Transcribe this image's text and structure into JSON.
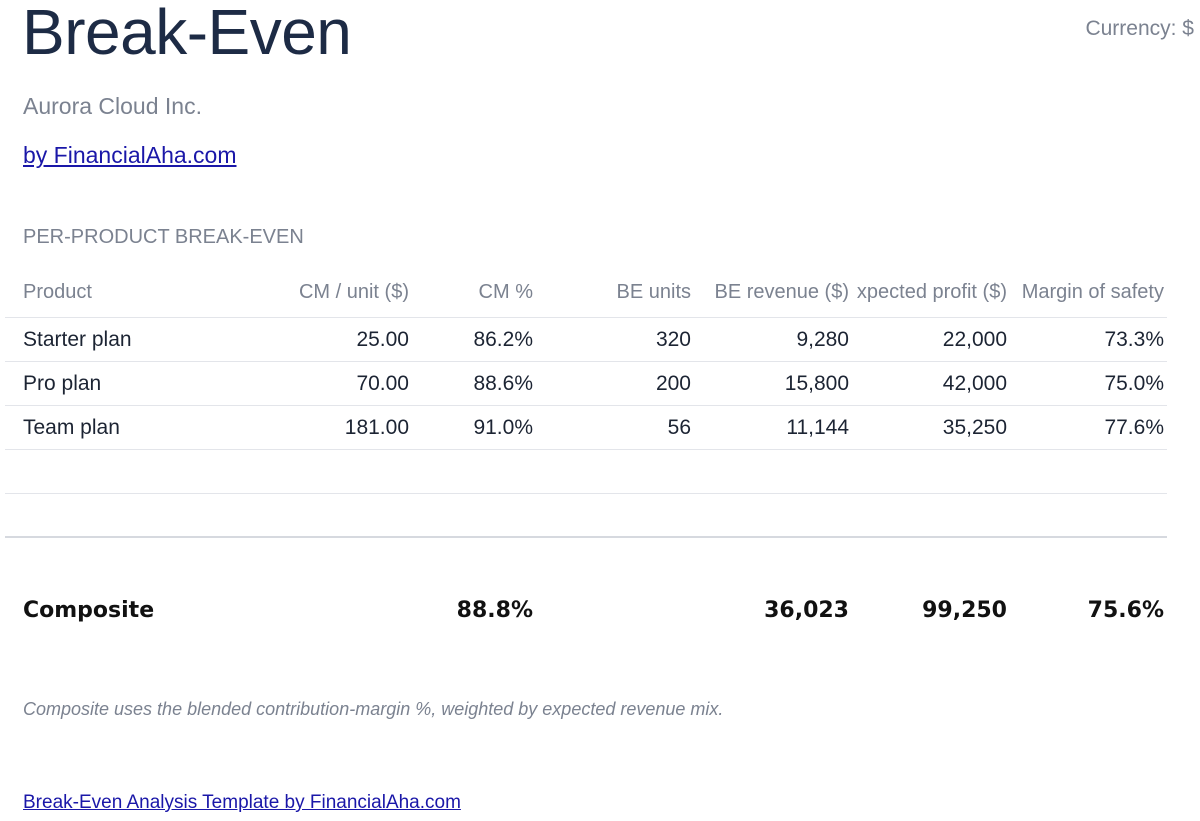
{
  "header": {
    "title": "Break-Even",
    "currency": "Currency: $",
    "company": "Aurora Cloud Inc.",
    "byline": "by FinancialAha.com"
  },
  "section": {
    "title": "PER-PRODUCT BREAK-EVEN"
  },
  "table": {
    "columns": [
      "Product",
      "CM / unit ($)",
      "CM %",
      "BE units",
      "BE revenue ($)",
      "xpected profit ($)",
      "Margin of safety"
    ],
    "rows": [
      {
        "product": "Starter plan",
        "cm_unit": "25.00",
        "cm_pct": "86.2%",
        "be_units": "320",
        "be_revenue": "9,280",
        "expected_profit": "22,000",
        "margin_of_safety": "73.3%"
      },
      {
        "product": "Pro plan",
        "cm_unit": "70.00",
        "cm_pct": "88.6%",
        "be_units": "200",
        "be_revenue": "15,800",
        "expected_profit": "42,000",
        "margin_of_safety": "75.0%"
      },
      {
        "product": "Team plan",
        "cm_unit": "181.00",
        "cm_pct": "91.0%",
        "be_units": "56",
        "be_revenue": "11,144",
        "expected_profit": "35,250",
        "margin_of_safety": "77.6%"
      }
    ],
    "composite": {
      "label": "Composite",
      "cm_pct": "88.8%",
      "be_revenue": "36,023",
      "expected_profit": "99,250",
      "margin_of_safety": "75.6%"
    }
  },
  "note": "Composite uses the blended contribution-margin %, weighted by expected revenue mix.",
  "footer": {
    "link_text": "Break-Even Analysis Template by FinancialAha.com"
  }
}
